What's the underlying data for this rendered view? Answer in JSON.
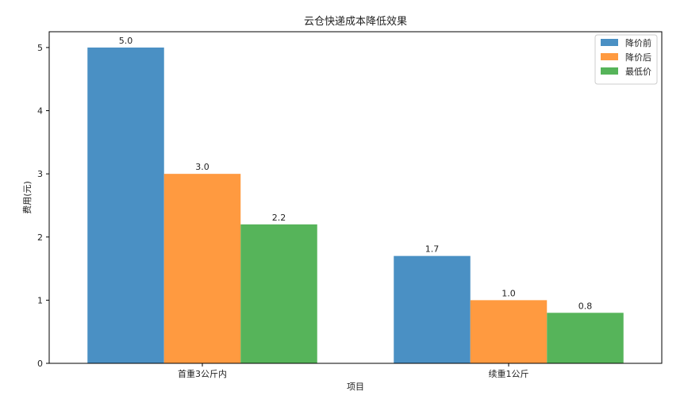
{
  "chart_data": {
    "type": "bar",
    "title": "云仓快递成本降低效果",
    "xlabel": "项目",
    "ylabel": "费用(元)",
    "categories": [
      "首重3公斤内",
      "续重1公斤"
    ],
    "series": [
      {
        "name": "降价前",
        "values": [
          5.0,
          1.7
        ],
        "labels": [
          "5.0",
          "1.7"
        ],
        "color": "#4a90c4"
      },
      {
        "name": "降价后",
        "values": [
          3.0,
          1.0
        ],
        "labels": [
          "3.0",
          "1.0"
        ],
        "color": "#ff9a40"
      },
      {
        "name": "最低价",
        "values": [
          2.2,
          0.8
        ],
        "labels": [
          "2.2",
          "0.8"
        ],
        "color": "#56b45a"
      }
    ],
    "ylim": [
      0,
      5.25
    ],
    "yticks": [
      0,
      1,
      2,
      3,
      4,
      5
    ],
    "grid": false,
    "legend_position": "top-right"
  }
}
